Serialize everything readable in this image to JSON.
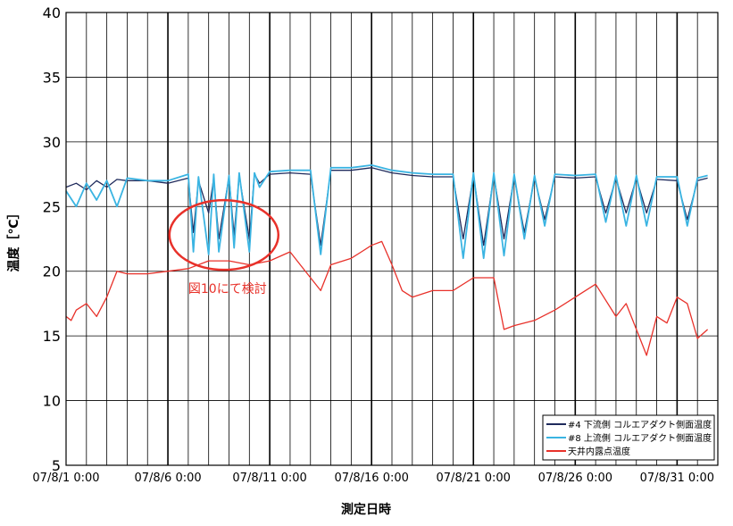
{
  "chart_data": {
    "type": "line",
    "title": "",
    "xlabel": "測定日時",
    "ylabel": "温度［℃］",
    "ylim": [
      5,
      40
    ],
    "yticks": [
      "5",
      "10",
      "15",
      "20",
      "25",
      "30",
      "35",
      "40"
    ],
    "xlim": [
      "07/8/1 0:00",
      "07/9/2 0:00"
    ],
    "xtick_labels": [
      "07/8/1 0:00",
      "07/8/6 0:00",
      "07/8/11 0:00",
      "07/8/16 0:00",
      "07/8/21 0:00",
      "07/8/26 0:00",
      "07/8/31 0:00"
    ],
    "grid": true,
    "legend_position": "bottom-right",
    "annotation": {
      "text": "図10にて検討",
      "color": "#e8312a",
      "ellipse_center": [
        "07/8/8 18:00",
        22.8
      ]
    },
    "series": [
      {
        "name": "#4 下流側 コルエアダクト側面温度",
        "color": "#1f2a5c",
        "x": [
          "07/8/1 0:00",
          "07/8/1 12:00",
          "07/8/2 0:00",
          "07/8/2 12:00",
          "07/8/3 0:00",
          "07/8/3 12:00",
          "07/8/4 0:00",
          "07/8/5 0:00",
          "07/8/6 0:00",
          "07/8/7 0:00",
          "07/8/7 6:00",
          "07/8/7 12:00",
          "07/8/8 0:00",
          "07/8/8 6:00",
          "07/8/8 12:00",
          "07/8/9 0:00",
          "07/8/9 6:00",
          "07/8/9 12:00",
          "07/8/10 0:00",
          "07/8/10 6:00",
          "07/8/10 12:00",
          "07/8/11 0:00",
          "07/8/12 0:00",
          "07/8/13 0:00",
          "07/8/13 12:00",
          "07/8/14 0:00",
          "07/8/15 0:00",
          "07/8/16 0:00",
          "07/8/17 0:00",
          "07/8/18 0:00",
          "07/8/19 0:00",
          "07/8/20 0:00",
          "07/8/20 12:00",
          "07/8/21 0:00",
          "07/8/21 12:00",
          "07/8/22 0:00",
          "07/8/22 12:00",
          "07/8/23 0:00",
          "07/8/23 12:00",
          "07/8/24 0:00",
          "07/8/24 12:00",
          "07/8/25 0:00",
          "07/8/26 0:00",
          "07/8/27 0:00",
          "07/8/27 12:00",
          "07/8/28 0:00",
          "07/8/28 12:00",
          "07/8/29 0:00",
          "07/8/29 12:00",
          "07/8/30 0:00",
          "07/8/31 0:00",
          "07/8/31 12:00",
          "07/9/1 0:00",
          "07/9/1 12:00"
        ],
        "y": [
          26.5,
          26.8,
          26.3,
          27.0,
          26.5,
          27.1,
          27.0,
          27.0,
          26.8,
          27.2,
          23.0,
          27.0,
          24.5,
          27.2,
          22.5,
          27.3,
          22.8,
          27.4,
          22.5,
          27.5,
          26.8,
          27.5,
          27.6,
          27.5,
          22.0,
          27.8,
          27.8,
          28.0,
          27.6,
          27.4,
          27.3,
          27.3,
          22.5,
          27.4,
          22.0,
          27.4,
          22.5,
          27.3,
          23.0,
          27.2,
          24.0,
          27.3,
          27.2,
          27.3,
          24.5,
          27.2,
          24.5,
          27.2,
          24.5,
          27.1,
          27.0,
          24.0,
          27.0,
          27.2
        ]
      },
      {
        "name": "#8 上流側 コルエアダクト側面温度",
        "color": "#3ab4e2",
        "x": [
          "07/8/1 0:00",
          "07/8/1 12:00",
          "07/8/2 0:00",
          "07/8/2 12:00",
          "07/8/3 0:00",
          "07/8/3 12:00",
          "07/8/4 0:00",
          "07/8/5 0:00",
          "07/8/6 0:00",
          "07/8/7 0:00",
          "07/8/7 6:00",
          "07/8/7 12:00",
          "07/8/8 0:00",
          "07/8/8 6:00",
          "07/8/8 12:00",
          "07/8/9 0:00",
          "07/8/9 6:00",
          "07/8/9 12:00",
          "07/8/10 0:00",
          "07/8/10 6:00",
          "07/8/10 12:00",
          "07/8/11 0:00",
          "07/8/12 0:00",
          "07/8/13 0:00",
          "07/8/13 12:00",
          "07/8/14 0:00",
          "07/8/15 0:00",
          "07/8/16 0:00",
          "07/8/17 0:00",
          "07/8/18 0:00",
          "07/8/19 0:00",
          "07/8/20 0:00",
          "07/8/20 12:00",
          "07/8/21 0:00",
          "07/8/21 12:00",
          "07/8/22 0:00",
          "07/8/22 12:00",
          "07/8/23 0:00",
          "07/8/23 12:00",
          "07/8/24 0:00",
          "07/8/24 12:00",
          "07/8/25 0:00",
          "07/8/26 0:00",
          "07/8/27 0:00",
          "07/8/27 12:00",
          "07/8/28 0:00",
          "07/8/28 12:00",
          "07/8/29 0:00",
          "07/8/29 12:00",
          "07/8/30 0:00",
          "07/8/31 0:00",
          "07/8/31 12:00",
          "07/9/1 0:00",
          "07/9/1 12:00"
        ],
        "y": [
          26.2,
          25.0,
          26.8,
          25.5,
          27.0,
          25.0,
          27.2,
          27.0,
          27.0,
          27.5,
          21.5,
          27.3,
          21.3,
          27.5,
          21.5,
          27.4,
          21.8,
          27.6,
          21.5,
          27.6,
          26.5,
          27.7,
          27.8,
          27.8,
          21.3,
          28.0,
          28.0,
          28.2,
          27.8,
          27.6,
          27.5,
          27.5,
          21.0,
          27.6,
          21.0,
          27.6,
          21.2,
          27.5,
          22.5,
          27.4,
          23.5,
          27.5,
          27.4,
          27.5,
          23.8,
          27.4,
          23.5,
          27.4,
          23.5,
          27.3,
          27.3,
          23.5,
          27.2,
          27.4
        ]
      },
      {
        "name": "天井内露点温度",
        "color": "#e8312a",
        "x": [
          "07/8/1 0:00",
          "07/8/1 6:00",
          "07/8/1 12:00",
          "07/8/2 0:00",
          "07/8/2 12:00",
          "07/8/3 0:00",
          "07/8/3 12:00",
          "07/8/4 0:00",
          "07/8/5 0:00",
          "07/8/6 0:00",
          "07/8/7 0:00",
          "07/8/8 0:00",
          "07/8/9 0:00",
          "07/8/10 0:00",
          "07/8/11 0:00",
          "07/8/12 0:00",
          "07/8/12 12:00",
          "07/8/13 0:00",
          "07/8/13 12:00",
          "07/8/14 0:00",
          "07/8/15 0:00",
          "07/8/15 12:00",
          "07/8/16 0:00",
          "07/8/16 12:00",
          "07/8/17 0:00",
          "07/8/17 12:00",
          "07/8/18 0:00",
          "07/8/19 0:00",
          "07/8/20 0:00",
          "07/8/21 0:00",
          "07/8/22 0:00",
          "07/8/22 12:00",
          "07/8/23 0:00",
          "07/8/24 0:00",
          "07/8/25 0:00",
          "07/8/26 0:00",
          "07/8/27 0:00",
          "07/8/28 0:00",
          "07/8/28 12:00",
          "07/8/29 0:00",
          "07/8/29 12:00",
          "07/8/30 0:00",
          "07/8/30 12:00",
          "07/8/31 0:00",
          "07/8/31 12:00",
          "07/9/1 0:00",
          "07/9/1 12:00"
        ],
        "y": [
          16.5,
          16.2,
          17.0,
          17.5,
          16.5,
          18.0,
          20.0,
          19.8,
          19.8,
          20.0,
          20.2,
          20.8,
          20.8,
          20.5,
          20.8,
          21.5,
          20.5,
          19.5,
          18.5,
          20.5,
          21.0,
          21.5,
          22.0,
          22.3,
          20.5,
          18.5,
          18.0,
          18.5,
          18.5,
          19.5,
          19.5,
          15.5,
          15.8,
          16.2,
          17.0,
          18.0,
          19.0,
          16.5,
          17.5,
          15.5,
          13.5,
          16.5,
          16.0,
          18.0,
          17.5,
          14.8,
          15.5
        ]
      }
    ]
  }
}
